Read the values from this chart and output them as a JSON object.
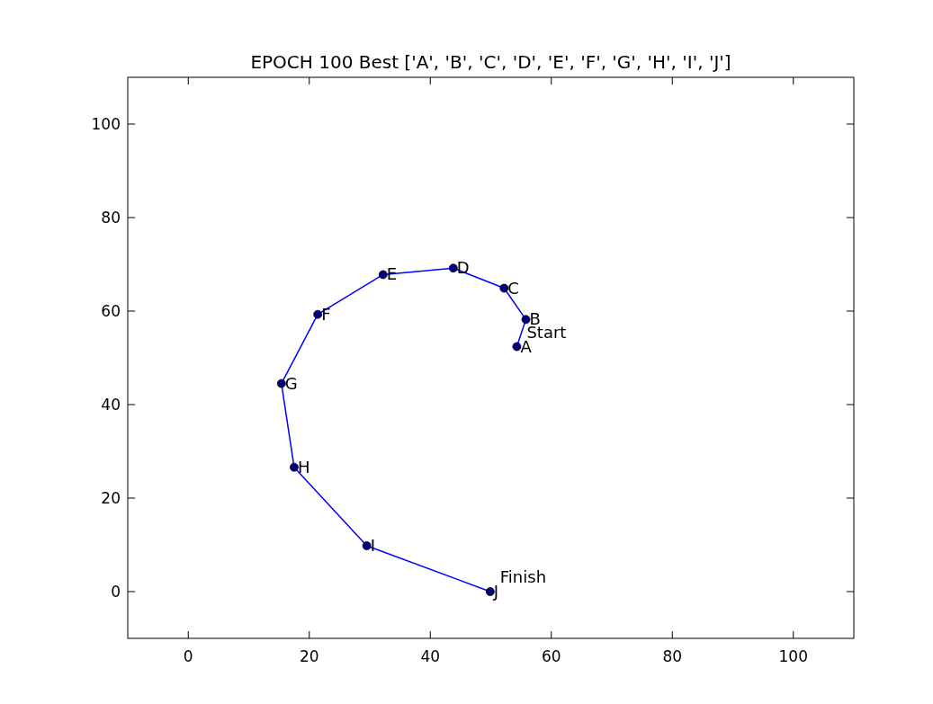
{
  "chart_data": {
    "type": "line",
    "title": "EPOCH 100 Best ['A', 'B', 'C', 'D', 'E', 'F', 'G', 'H', 'I', 'J']",
    "x": [
      54.3,
      55.8,
      52.2,
      43.8,
      32.2,
      21.4,
      15.4,
      17.5,
      29.5,
      49.9
    ],
    "series": [
      {
        "color": "#0000ff",
        "values": [
          52.4,
          58.2,
          64.9,
          69.2,
          67.8,
          59.3,
          44.5,
          26.6,
          9.8,
          0
        ]
      }
    ],
    "marker": "circle",
    "line_style": "solid",
    "grid": false,
    "xlim": [
      -10,
      110
    ],
    "ylim": [
      -10,
      110
    ],
    "xticks": [
      0,
      20,
      40,
      60,
      80,
      100
    ],
    "yticks": [
      0,
      20,
      40,
      60,
      80,
      100
    ],
    "annotations": [
      {
        "text": "A",
        "x": 54.3,
        "y": 52.4
      },
      {
        "text": "B",
        "x": 55.8,
        "y": 58.2
      },
      {
        "text": "C",
        "x": 52.2,
        "y": 64.9
      },
      {
        "text": "D",
        "x": 43.8,
        "y": 69.2
      },
      {
        "text": "E",
        "x": 32.2,
        "y": 67.8
      },
      {
        "text": "F",
        "x": 21.4,
        "y": 59.3
      },
      {
        "text": "G",
        "x": 15.4,
        "y": 44.5
      },
      {
        "text": "H",
        "x": 17.5,
        "y": 26.6
      },
      {
        "text": "I",
        "x": 29.5,
        "y": 9.8
      },
      {
        "text": "J",
        "x": 49.9,
        "y": 0
      },
      {
        "text": "Start",
        "x": 54.3,
        "y": 52.4
      },
      {
        "text": "Finish",
        "x": 49.9,
        "y": 0
      }
    ]
  }
}
